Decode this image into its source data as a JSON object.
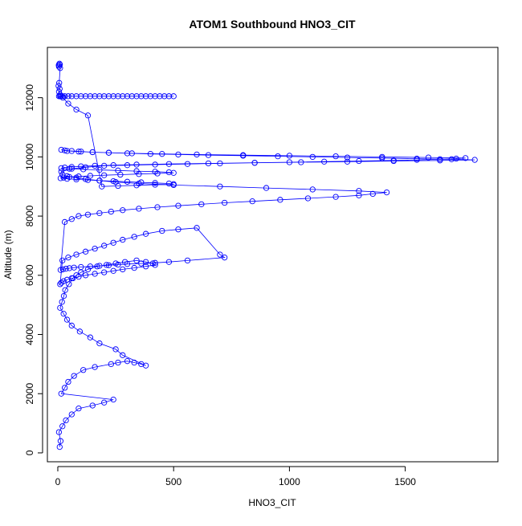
{
  "chart_data": {
    "type": "scatter",
    "title": "ATOM1 Southbound HNO3_CIT",
    "xlabel": "HNO3_CIT",
    "ylabel": "Altitude (m)",
    "xlim": [
      -45,
      1900
    ],
    "ylim": [
      -300,
      13700
    ],
    "xticks": [
      0,
      500,
      1000,
      1500
    ],
    "yticks": [
      0,
      2000,
      4000,
      6000,
      8000,
      10000,
      12000
    ],
    "color": "#0000ff",
    "marker": "open-circle",
    "lines": true,
    "grid": false,
    "series": [
      {
        "x": [
          8,
          12,
          5,
          20,
          35,
          60,
          90,
          150,
          200,
          240,
          15,
          30,
          45,
          70,
          110,
          160,
          230,
          260,
          300,
          330,
          360,
          380,
          280,
          250,
          180,
          140,
          95,
          60,
          40,
          25,
          10,
          18,
          26,
          32,
          48,
          65,
          80,
          100,
          130,
          170,
          210,
          250,
          290,
          340,
          380,
          410,
          420,
          380,
          330,
          280,
          240,
          200,
          160,
          120,
          90,
          60,
          40,
          25,
          15,
          10,
          20,
          45,
          80,
          120,
          160,
          200,
          240,
          280,
          330,
          380,
          450,
          520,
          600,
          700,
          720,
          560,
          480,
          420,
          360,
          300,
          260,
          220,
          180,
          140,
          100,
          70,
          50,
          35,
          22,
          12,
          30,
          60,
          90,
          130,
          180,
          230,
          280,
          350,
          430,
          520,
          620,
          720,
          840,
          960,
          1080,
          1200,
          1300,
          1360,
          1420,
          1300,
          1100,
          900,
          700,
          500,
          350,
          250,
          180,
          120,
          80,
          40,
          20,
          15,
          60,
          120,
          200,
          300,
          420,
          560,
          700,
          850,
          1000,
          1150,
          1300,
          1450,
          1550,
          1650,
          1720,
          1760,
          1600,
          1400,
          1200,
          1000,
          800,
          600,
          450,
          320,
          220,
          150,
          100,
          60,
          30,
          15,
          40,
          90,
          150,
          220,
          300,
          400,
          520,
          650,
          800,
          950,
          1100,
          1250,
          1400,
          1550,
          1700,
          1800,
          1650,
          1450,
          1250,
          1050,
          850,
          650,
          480,
          340,
          240,
          160,
          100,
          60,
          30,
          15,
          50,
          110,
          180,
          260,
          340,
          420,
          480,
          500,
          430,
          350,
          270,
          200,
          140,
          90,
          50,
          25,
          12,
          40,
          80,
          130,
          180,
          240,
          300,
          360,
          420,
          480,
          500,
          420,
          340,
          260,
          190,
          130,
          80,
          45,
          22,
          10,
          5,
          8,
          3,
          6,
          10,
          4,
          7,
          9,
          5
        ],
        "y": [
          200,
          400,
          700,
          900,
          1100,
          1300,
          1500,
          1600,
          1700,
          1800,
          2000,
          2200,
          2400,
          2600,
          2800,
          2900,
          3000,
          3050,
          3100,
          3050,
          3000,
          2950,
          3300,
          3500,
          3700,
          3900,
          4100,
          4300,
          4500,
          4700,
          4900,
          5100,
          5300,
          5500,
          5700,
          5900,
          6000,
          6100,
          6200,
          6300,
          6350,
          6400,
          6450,
          6500,
          6450,
          6400,
          6350,
          6300,
          6250,
          6200,
          6150,
          6100,
          6050,
          6000,
          5950,
          5900,
          5850,
          5800,
          5750,
          5700,
          6500,
          6600,
          6700,
          6800,
          6900,
          7000,
          7100,
          7200,
          7300,
          7400,
          7500,
          7550,
          7600,
          6700,
          6600,
          6500,
          6450,
          6420,
          6400,
          6380,
          6360,
          6340,
          6320,
          6300,
          6280,
          6260,
          6240,
          6220,
          6200,
          6180,
          7800,
          7900,
          8000,
          8050,
          8100,
          8150,
          8200,
          8250,
          8300,
          8350,
          8400,
          8450,
          8500,
          8550,
          8600,
          8650,
          8700,
          8750,
          8800,
          8850,
          8900,
          8950,
          9000,
          9050,
          9100,
          9150,
          9200,
          9250,
          9300,
          9350,
          9400,
          9500,
          9600,
          9650,
          9700,
          9720,
          9740,
          9760,
          9780,
          9800,
          9820,
          9840,
          9860,
          9880,
          9900,
          9920,
          9940,
          9960,
          9980,
          10000,
          10020,
          10040,
          10060,
          10080,
          10100,
          10120,
          10140,
          10160,
          10180,
          10200,
          10220,
          10240,
          10200,
          10180,
          10160,
          10140,
          10120,
          10100,
          10080,
          10060,
          10040,
          10020,
          10000,
          9980,
          9960,
          9940,
          9920,
          9900,
          9880,
          9860,
          9840,
          9820,
          9800,
          9780,
          9760,
          9740,
          9720,
          9700,
          9680,
          9660,
          9640,
          9620,
          9600,
          9580,
          9560,
          9540,
          9520,
          9500,
          9480,
          9460,
          9440,
          9420,
          9400,
          9380,
          9360,
          9340,
          9320,
          9300,
          9280,
          9260,
          9240,
          9220,
          9200,
          9180,
          9160,
          9140,
          9120,
          9100,
          9080,
          9060,
          9040,
          9020,
          9000,
          11400,
          11600,
          11800,
          12000,
          12100,
          12200,
          12300,
          12400,
          12500,
          13000,
          13100,
          13150,
          13120,
          13050
        ],
        "x2": [
          5,
          10,
          14,
          20,
          30,
          45,
          60,
          80,
          100,
          120,
          140,
          160,
          180,
          200,
          220,
          240,
          260,
          280,
          300,
          320,
          340,
          360,
          380,
          400,
          420,
          440,
          460,
          480,
          500
        ],
        "y2": [
          12050,
          12050,
          12050,
          12050,
          12050,
          12050,
          12050,
          12050,
          12050,
          12050,
          12050,
          12050,
          12050,
          12050,
          12050,
          12050,
          12050,
          12050,
          12050,
          12050,
          12050,
          12050,
          12050,
          12050,
          12050,
          12050,
          12050,
          12050,
          12050
        ]
      }
    ]
  }
}
